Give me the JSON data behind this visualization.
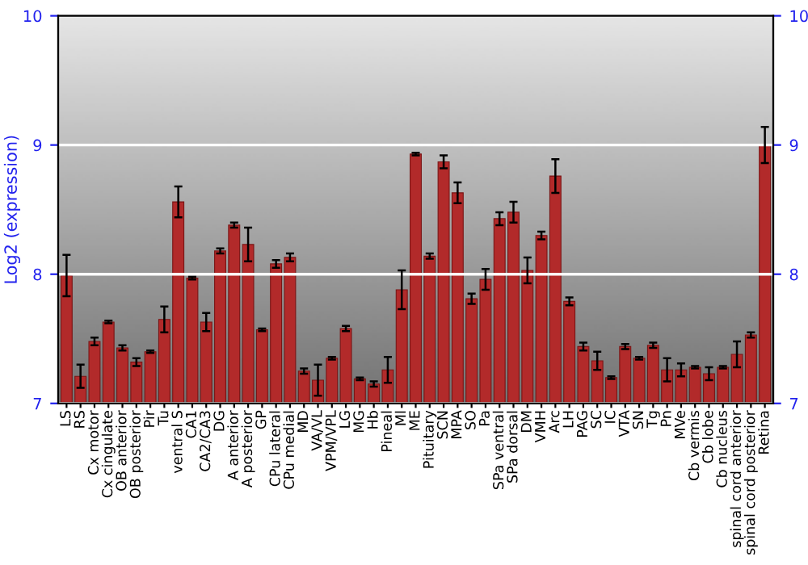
{
  "chart_data": {
    "type": "bar",
    "ylabel": "Log2 (expression)",
    "categories": [
      "LS",
      "RS",
      "Cx motor",
      "Cx cingulate",
      "OB anterior",
      "OB posterior",
      "Pir",
      "Tu",
      "ventral S",
      "CA1",
      "CA2/CA3",
      "DG",
      "A anterior",
      "A posterior",
      "GP",
      "CPu lateral",
      "CPu medial",
      "MD",
      "VA/VL",
      "VPM/VPL",
      "LG",
      "MG",
      "Hb",
      "Pineal",
      "Ml",
      "ME",
      "Pituitary",
      "SCN",
      "MPA",
      "SO",
      "Pa",
      "SPa ventral",
      "SPa dorsal",
      "DM",
      "VMH",
      "Arc",
      "LH",
      "PAG",
      "SC",
      "IC",
      "VTA",
      "SN",
      "Tg",
      "Pn",
      "MVe",
      "Cb vermis",
      "Cb lobe",
      "Cb nucleus",
      "spinal cord anterior",
      "spinal cord posterior",
      "Retina"
    ],
    "values": [
      7.99,
      7.21,
      7.48,
      7.63,
      7.43,
      7.32,
      7.4,
      7.65,
      8.56,
      7.97,
      7.63,
      8.18,
      8.38,
      8.23,
      7.57,
      8.08,
      8.13,
      7.25,
      7.18,
      7.35,
      7.58,
      7.19,
      7.15,
      7.26,
      7.88,
      8.93,
      8.14,
      8.87,
      8.63,
      7.81,
      7.96,
      8.43,
      8.48,
      8.03,
      8.3,
      8.76,
      7.79,
      7.44,
      7.33,
      7.2,
      7.44,
      7.35,
      7.45,
      7.26,
      7.26,
      7.28,
      7.23,
      7.28,
      7.38,
      7.53,
      9.0
    ],
    "errors": [
      0.16,
      0.09,
      0.03,
      0.01,
      0.02,
      0.03,
      0.01,
      0.1,
      0.12,
      0.01,
      0.07,
      0.02,
      0.02,
      0.13,
      0.01,
      0.03,
      0.03,
      0.02,
      0.12,
      0.01,
      0.02,
      0.01,
      0.02,
      0.1,
      0.15,
      0.01,
      0.02,
      0.05,
      0.08,
      0.04,
      0.08,
      0.05,
      0.08,
      0.1,
      0.03,
      0.13,
      0.03,
      0.03,
      0.07,
      0.01,
      0.02,
      0.01,
      0.02,
      0.09,
      0.05,
      0.01,
      0.05,
      0.01,
      0.1,
      0.02,
      0.14
    ],
    "color": "#b22a2a",
    "ylim": [
      7,
      10
    ],
    "yticks": [
      7,
      8,
      9,
      10
    ],
    "y2lim": [
      7,
      10
    ],
    "y2ticks": [
      7,
      8,
      9,
      10
    ],
    "grid": "y"
  }
}
